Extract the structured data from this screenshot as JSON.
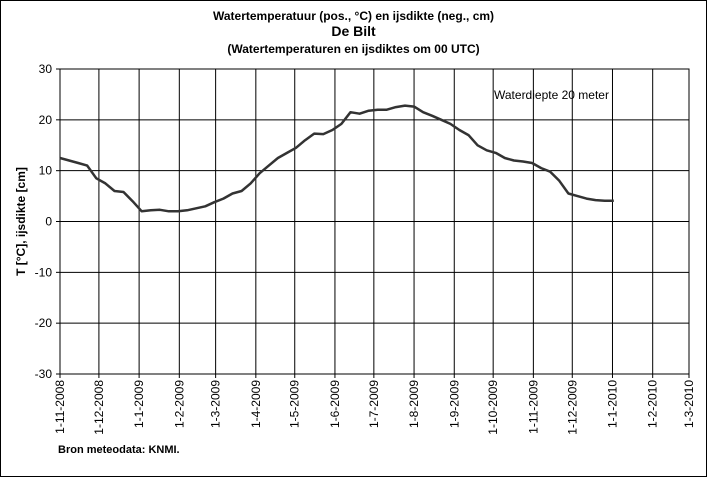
{
  "titles": {
    "line1": "Watertemperatuur  (pos., °C) en ijsdikte (neg., cm)",
    "line2": "De Bilt",
    "line3": "(Watertemperaturen  en ijsdiktes om 00 UTC)"
  },
  "source": "Bron meteodata:  KNMI.",
  "chart_data": {
    "type": "line",
    "title": "Watertemperatuur  (pos., °C) en ijsdikte (neg., cm)",
    "ylabel": "T [°C], ijsdikte [cm]",
    "xlabel": "",
    "ylim": [
      -30,
      30
    ],
    "yticks": [
      -30,
      -20,
      -10,
      0,
      10,
      20,
      30
    ],
    "grid": true,
    "annotation": "Waterdiepte 20 meter",
    "x_tick_labels": [
      "1-11-2008",
      "1-12-2008",
      "1-1-2009",
      "1-2-2009",
      "1-3-2009",
      "1-4-2009",
      "1-5-2009",
      "1-6-2009",
      "1-7-2009",
      "1-8-2009",
      "1-9-2009",
      "1-10-2009",
      "1-11-2009",
      "1-12-2009",
      "1-1-2010",
      "1-2-2010",
      "1-3-2010"
    ],
    "x_tick_days": [
      0,
      30,
      61,
      92,
      120,
      151,
      181,
      212,
      242,
      273,
      304,
      334,
      365,
      395,
      426,
      457,
      485
    ],
    "xlim_days": [
      0,
      485
    ],
    "series": [
      {
        "name": "",
        "color": "#333333",
        "x": [
          "1-11-2008",
          "8-11-2008",
          "15-11-2008",
          "22-11-2008",
          "29-11-2008",
          "6-12-2008",
          "13-12-2008",
          "20-12-2008",
          "27-12-2008",
          "3-1-2009",
          "10-1-2009",
          "17-1-2009",
          "24-1-2009",
          "31-1-2009",
          "7-2-2009",
          "14-2-2009",
          "21-2-2009",
          "28-2-2009",
          "7-3-2009",
          "14-3-2009",
          "21-3-2009",
          "28-3-2009",
          "4-4-2009",
          "11-4-2009",
          "18-4-2009",
          "25-4-2009",
          "2-5-2009",
          "9-5-2009",
          "16-5-2009",
          "23-5-2009",
          "30-5-2009",
          "6-6-2009",
          "13-6-2009",
          "20-6-2009",
          "27-6-2009",
          "4-7-2009",
          "11-7-2009",
          "18-7-2009",
          "25-7-2009",
          "1-8-2009",
          "8-8-2009",
          "15-8-2009",
          "22-8-2009",
          "29-8-2009",
          "5-9-2009",
          "12-9-2009",
          "19-9-2009",
          "26-9-2009",
          "3-10-2009",
          "10-10-2009",
          "17-10-2009",
          "24-10-2009",
          "31-10-2009",
          "7-11-2009",
          "14-11-2009",
          "21-11-2009",
          "28-11-2009",
          "5-12-2009",
          "12-12-2009",
          "19-12-2009",
          "26-12-2009",
          "2-1-2010"
        ],
        "y": [
          12.5,
          12,
          11.5,
          11,
          8.5,
          7.5,
          6,
          5.8,
          4,
          2,
          2.2,
          2.3,
          2,
          2,
          2.2,
          2.6,
          3,
          3.8,
          4.5,
          5.5,
          6,
          7.5,
          9.5,
          11,
          12.5,
          13.5,
          14.5,
          16,
          17.3,
          17.2,
          18,
          19.2,
          21.5,
          21.2,
          21.8,
          22,
          22,
          22.5,
          22.8,
          22.6,
          21.5,
          20.8,
          20,
          19.2,
          18,
          17,
          15,
          14,
          13.5,
          12.5,
          12,
          11.8,
          11.5,
          10.5,
          9.8,
          8,
          5.5,
          5,
          4.5,
          4.2,
          4.1,
          4.1
        ]
      }
    ]
  }
}
